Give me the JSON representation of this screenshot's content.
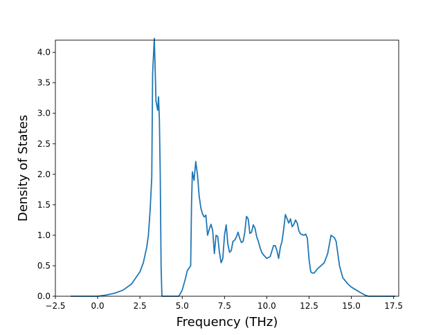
{
  "chart_data": {
    "type": "line",
    "title": "",
    "xlabel": "Frequency (THz)",
    "ylabel": "Density of States",
    "xlim": [
      -2.5,
      17.8
    ],
    "ylim": [
      0,
      4.2
    ],
    "grid": false,
    "xticks": [
      -2.5,
      0.0,
      2.5,
      5.0,
      7.5,
      10.0,
      12.5,
      15.0,
      17.5
    ],
    "xtick_labels": [
      "−2.5",
      "0.0",
      "2.5",
      "5.0",
      "7.5",
      "10.0",
      "12.5",
      "15.0",
      "17.5"
    ],
    "yticks": [
      0.0,
      0.5,
      1.0,
      1.5,
      2.0,
      2.5,
      3.0,
      3.5,
      4.0
    ],
    "ytick_labels": [
      "0.0",
      "0.5",
      "1.0",
      "1.5",
      "2.0",
      "2.5",
      "3.0",
      "3.5",
      "4.0"
    ],
    "series": [
      {
        "color": "#1f77b4",
        "x": [
          -1.6,
          -1.0,
          -0.5,
          0.0,
          0.5,
          1.0,
          1.5,
          2.0,
          2.5,
          2.7,
          2.9,
          3.0,
          3.1,
          3.2,
          3.25,
          3.35,
          3.45,
          3.55,
          3.6,
          3.65,
          3.7,
          3.75,
          3.8,
          4.0,
          4.5,
          4.8,
          5.0,
          5.2,
          5.3,
          5.5,
          5.55,
          5.6,
          5.7,
          5.8,
          5.9,
          6.0,
          6.1,
          6.2,
          6.3,
          6.4,
          6.5,
          6.6,
          6.7,
          6.8,
          6.9,
          7.0,
          7.1,
          7.2,
          7.3,
          7.4,
          7.5,
          7.6,
          7.7,
          7.8,
          7.9,
          8.0,
          8.1,
          8.2,
          8.3,
          8.4,
          8.5,
          8.6,
          8.7,
          8.8,
          8.9,
          9.0,
          9.1,
          9.2,
          9.3,
          9.4,
          9.5,
          9.6,
          9.7,
          9.8,
          9.9,
          10.0,
          10.2,
          10.4,
          10.5,
          10.6,
          10.7,
          10.8,
          10.9,
          11.0,
          11.1,
          11.2,
          11.3,
          11.4,
          11.5,
          11.6,
          11.7,
          11.8,
          11.9,
          12.0,
          12.1,
          12.2,
          12.3,
          12.4,
          12.5,
          12.6,
          12.7,
          12.8,
          13.0,
          13.2,
          13.4,
          13.6,
          13.7,
          13.8,
          13.9,
          14.0,
          14.1,
          14.2,
          14.3,
          14.5,
          14.8,
          15.0,
          15.3,
          15.6,
          15.8,
          16.0,
          16.2,
          17.0,
          17.6
        ],
        "y": [
          0.0,
          0.0,
          0.0,
          0.0,
          0.02,
          0.05,
          0.1,
          0.2,
          0.4,
          0.55,
          0.8,
          1.0,
          1.4,
          1.95,
          3.65,
          4.23,
          3.2,
          3.05,
          3.27,
          2.9,
          2.0,
          0.5,
          0.0,
          0.0,
          0.0,
          0.0,
          0.1,
          0.3,
          0.42,
          0.5,
          1.5,
          2.04,
          1.9,
          2.21,
          2.0,
          1.65,
          1.45,
          1.35,
          1.3,
          1.33,
          1.0,
          1.1,
          1.18,
          1.08,
          0.7,
          1.0,
          0.98,
          0.72,
          0.55,
          0.62,
          1.0,
          1.17,
          0.85,
          0.72,
          0.75,
          0.9,
          0.92,
          0.97,
          1.05,
          0.95,
          0.88,
          0.9,
          1.05,
          1.31,
          1.27,
          1.03,
          1.05,
          1.17,
          1.12,
          0.98,
          0.9,
          0.8,
          0.72,
          0.68,
          0.65,
          0.62,
          0.65,
          0.83,
          0.83,
          0.75,
          0.62,
          0.8,
          0.9,
          1.1,
          1.34,
          1.27,
          1.2,
          1.27,
          1.14,
          1.18,
          1.25,
          1.2,
          1.07,
          1.02,
          1.01,
          1.0,
          1.02,
          0.95,
          0.6,
          0.4,
          0.38,
          0.38,
          0.45,
          0.5,
          0.55,
          0.7,
          0.85,
          1.0,
          0.98,
          0.96,
          0.9,
          0.7,
          0.5,
          0.3,
          0.2,
          0.15,
          0.1,
          0.05,
          0.02,
          0.0,
          0.0,
          0.0,
          0.0
        ]
      }
    ]
  }
}
